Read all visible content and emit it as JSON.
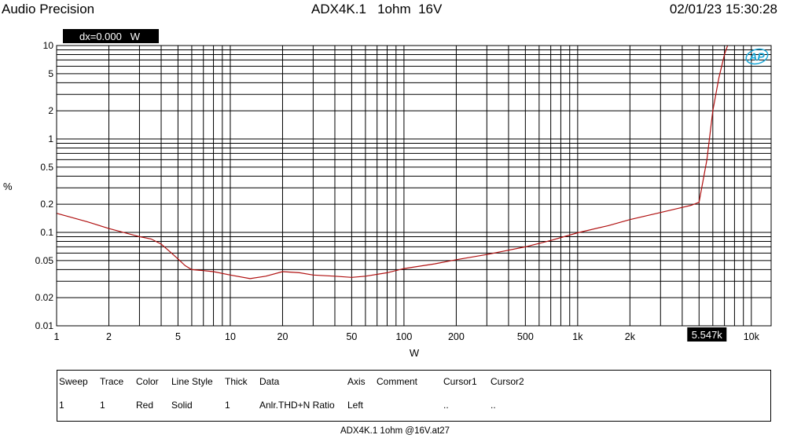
{
  "header": {
    "left": "Audio Precision",
    "center": "ADX4K.1   1ohm  16V",
    "right": "02/01/23 15:30:28"
  },
  "cursor": {
    "readout": "dx=0.000   W",
    "marker_label": "5.547k",
    "marker_x": 5547
  },
  "chart_data": {
    "type": "line",
    "title": "",
    "xlabel": "W",
    "ylabel": "%",
    "xscale": "log",
    "yscale": "log",
    "xlim": [
      1,
      13000
    ],
    "ylim": [
      0.01,
      10
    ],
    "grid": true,
    "x_ticks": [
      {
        "v": 1,
        "label": "1"
      },
      {
        "v": 2,
        "label": "2"
      },
      {
        "v": 5,
        "label": "5"
      },
      {
        "v": 10,
        "label": "10"
      },
      {
        "v": 20,
        "label": "20"
      },
      {
        "v": 50,
        "label": "50"
      },
      {
        "v": 100,
        "label": "100"
      },
      {
        "v": 200,
        "label": "200"
      },
      {
        "v": 500,
        "label": "500"
      },
      {
        "v": 1000,
        "label": "1k"
      },
      {
        "v": 2000,
        "label": "2k"
      },
      {
        "v": 10000,
        "label": "10k"
      }
    ],
    "y_ticks": [
      {
        "v": 0.01,
        "label": "0.01"
      },
      {
        "v": 0.02,
        "label": "0.02"
      },
      {
        "v": 0.05,
        "label": "0.05"
      },
      {
        "v": 0.1,
        "label": "0.1"
      },
      {
        "v": 0.2,
        "label": "0.2"
      },
      {
        "v": 0.5,
        "label": "0.5"
      },
      {
        "v": 1,
        "label": "1"
      },
      {
        "v": 2,
        "label": "2"
      },
      {
        "v": 5,
        "label": "5"
      },
      {
        "v": 10,
        "label": "10"
      }
    ],
    "series": [
      {
        "color": "#b01010",
        "x": [
          1,
          1.5,
          2,
          3,
          3.5,
          4,
          4.5,
          5,
          5.5,
          6,
          7,
          8,
          10,
          13,
          16,
          20,
          25,
          30,
          40,
          50,
          60,
          80,
          100,
          150,
          200,
          300,
          500,
          700,
          1000,
          1500,
          2000,
          3000,
          4000,
          4500,
          5000,
          5547,
          6000,
          6500,
          7000,
          7300
        ],
        "y": [
          0.16,
          0.13,
          0.11,
          0.09,
          0.085,
          0.075,
          0.062,
          0.052,
          0.044,
          0.04,
          0.039,
          0.038,
          0.035,
          0.032,
          0.034,
          0.038,
          0.037,
          0.035,
          0.034,
          0.033,
          0.034,
          0.037,
          0.041,
          0.046,
          0.051,
          0.058,
          0.07,
          0.082,
          0.099,
          0.118,
          0.137,
          0.163,
          0.185,
          0.195,
          0.21,
          0.6,
          2.0,
          4.5,
          8.0,
          10.0
        ]
      }
    ]
  },
  "logo": "AP",
  "legend_table": {
    "headers": [
      "Sweep",
      "Trace",
      "Color",
      "Line Style",
      "Thick",
      "Data",
      "Axis",
      "Comment",
      "Cursor1",
      "Cursor2"
    ],
    "row": [
      "1",
      "1",
      "Red",
      "Solid",
      "1",
      "Anlr.THD+N Ratio",
      "Left",
      "",
      "..",
      ".."
    ]
  },
  "footer": "ADX4K.1 1ohm @16V.at27"
}
